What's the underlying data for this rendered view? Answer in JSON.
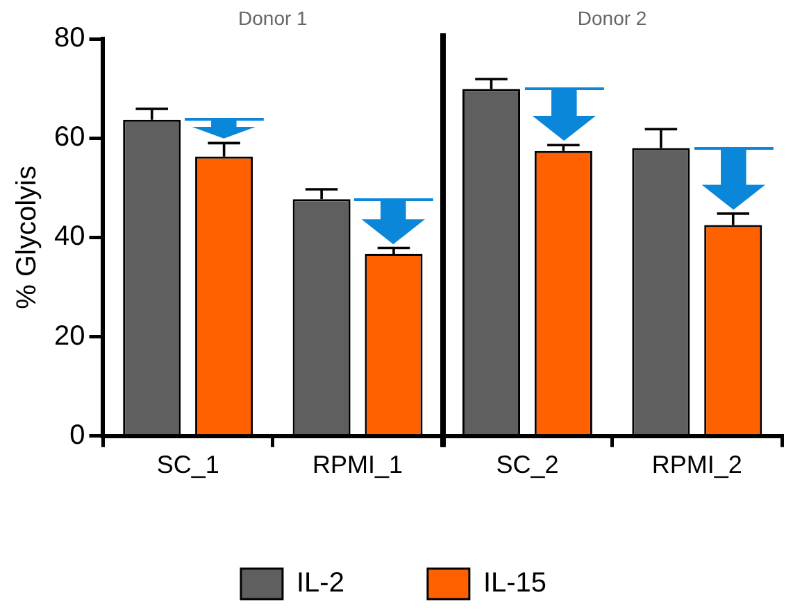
{
  "chart_data": {
    "type": "bar",
    "categories": [
      "SC_1",
      "RPMI_1",
      "SC_2",
      "RPMI_2"
    ],
    "series": [
      {
        "name": "IL-2",
        "color": "#5f5f5f",
        "values": [
          63.7,
          47.7,
          69.9,
          58
        ],
        "errors": [
          [
            63.7,
            65.9
          ],
          [
            47.7,
            49.7
          ],
          [
            69.9,
            71.9
          ],
          [
            58,
            61.8
          ]
        ]
      },
      {
        "name": "IL-15",
        "color": "#ff6000",
        "values": [
          56.3,
          36.7,
          57.4,
          42.5
        ],
        "errors": [
          [
            56.3,
            59
          ],
          [
            36.7,
            37.9
          ],
          [
            57.4,
            58.6
          ],
          [
            42.5,
            44.8
          ]
        ]
      }
    ],
    "ylabel": "% Glycolyis",
    "ylim": [
      0,
      80
    ],
    "yticks": [
      0,
      20,
      40,
      60,
      80
    ],
    "annotations": [
      "Donor 1",
      "Donor 2"
    ],
    "grid": false,
    "legend": "bottom"
  }
}
